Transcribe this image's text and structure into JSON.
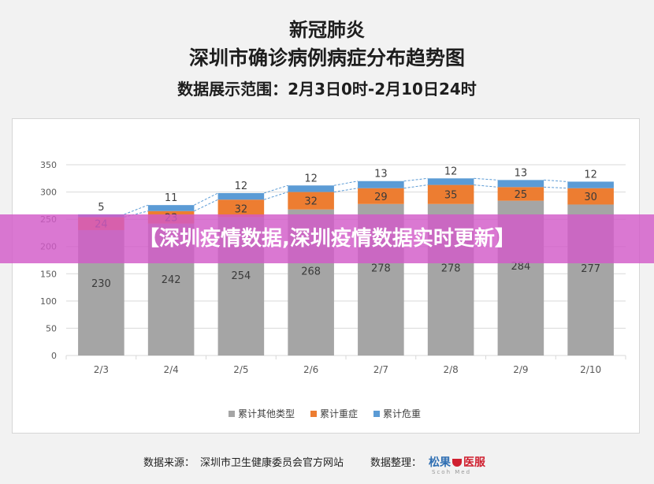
{
  "header": {
    "title_line1": "新冠肺炎",
    "title_line2": "深圳市确诊病例病症分布趋势图",
    "date_range": "数据展示范围：2月3日0时-2月10日24时"
  },
  "banner": {
    "text": "【深圳疫情数据,深圳疫情数据实时更新】"
  },
  "footer": {
    "source_label": "数据来源：",
    "source_value": "深圳市卫生健康委员会官方网站",
    "organizer_label": "数据整理：",
    "logo_text_left": "松果",
    "logo_text_right": "医服",
    "logo_subtext": "Scoh Med"
  },
  "colors": {
    "other": "#a5a5a5",
    "severe": "#ed7d31",
    "critical": "#5b9bd5"
  },
  "chart_data": {
    "type": "bar",
    "stacked": true,
    "categories": [
      "2/3",
      "2/4",
      "2/5",
      "2/6",
      "2/7",
      "2/8",
      "2/9",
      "2/10"
    ],
    "series": [
      {
        "name": "累计其他类型",
        "values": [
          230,
          242,
          254,
          268,
          278,
          278,
          284,
          277
        ]
      },
      {
        "name": "累计重症",
        "values": [
          24,
          23,
          32,
          32,
          29,
          35,
          25,
          30
        ]
      },
      {
        "name": "累计危重",
        "values": [
          5,
          11,
          12,
          12,
          13,
          12,
          13,
          12
        ]
      }
    ],
    "ylim": [
      0,
      350
    ],
    "yticks": [
      "0",
      "50",
      "100",
      "150",
      "200",
      "250",
      "300",
      "350"
    ],
    "grid": true,
    "legend_position": "bottom",
    "connector_lines": true
  }
}
